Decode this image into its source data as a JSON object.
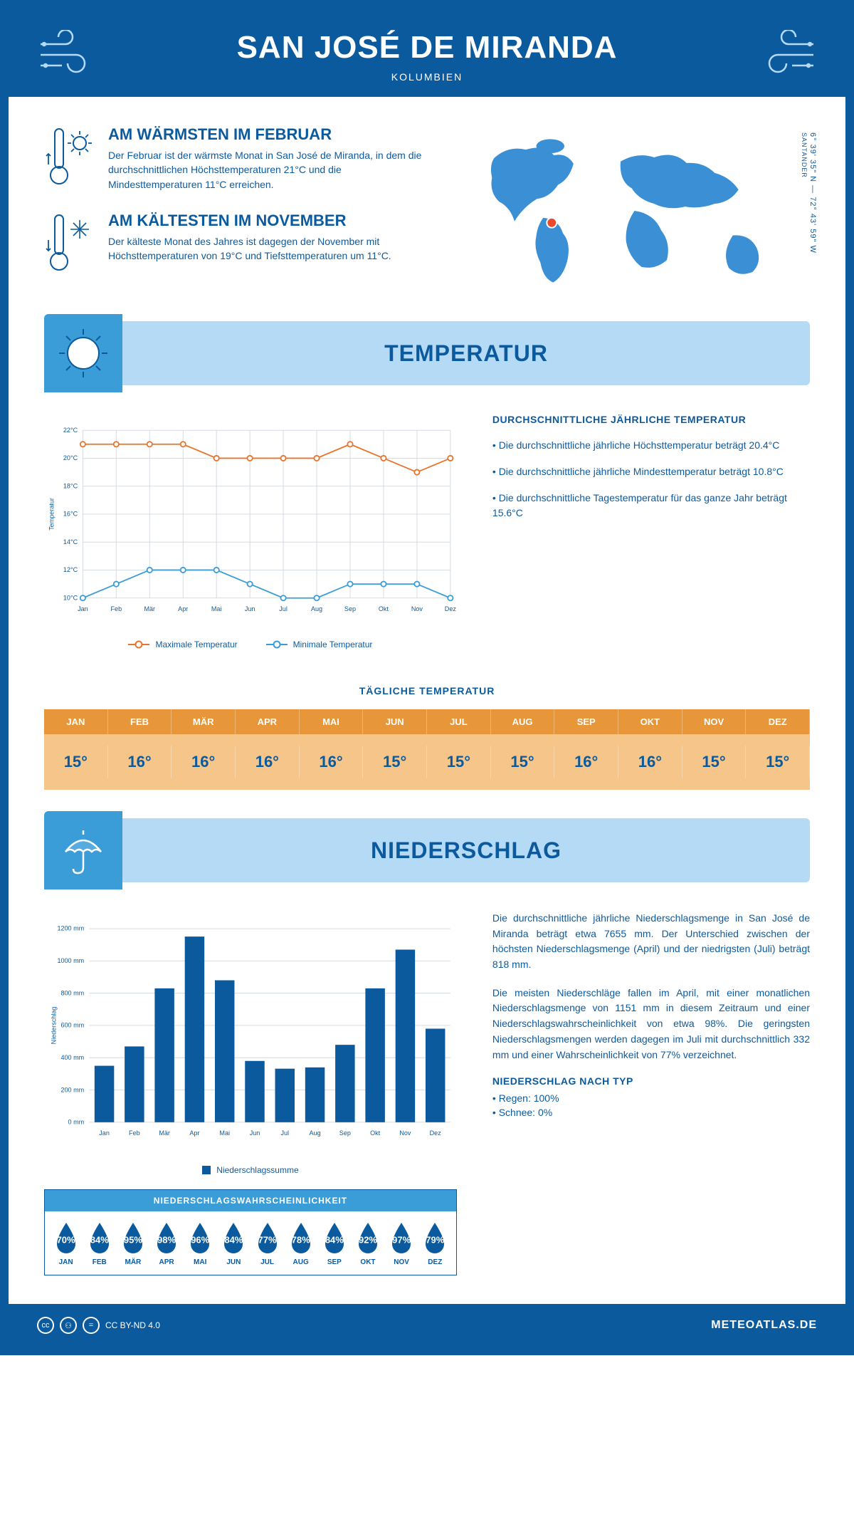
{
  "header": {
    "title": "SAN JOSÉ DE MIRANDA",
    "subtitle": "KOLUMBIEN"
  },
  "coords": {
    "line1": "6° 39' 35\" N — 72° 43' 59\" W",
    "line2": "SANTANDER"
  },
  "facts": {
    "warm": {
      "title": "AM WÄRMSTEN IM FEBRUAR",
      "text": "Der Februar ist der wärmste Monat in San José de Miranda, in dem die durchschnittlichen Höchsttemperaturen 21°C und die Mindesttemperaturen 11°C erreichen."
    },
    "cold": {
      "title": "AM KÄLTESTEN IM NOVEMBER",
      "text": "Der kälteste Monat des Jahres ist dagegen der November mit Höchsttemperaturen von 19°C und Tiefsttemperaturen um 11°C."
    }
  },
  "sections": {
    "temperature": "TEMPERATUR",
    "precipitation": "NIEDERSCHLAG"
  },
  "tempChart": {
    "type": "line",
    "months": [
      "Jan",
      "Feb",
      "Mär",
      "Apr",
      "Mai",
      "Jun",
      "Jul",
      "Aug",
      "Sep",
      "Okt",
      "Nov",
      "Dez"
    ],
    "max": [
      21,
      21,
      21,
      21,
      20,
      20,
      20,
      20,
      21,
      20,
      19,
      20
    ],
    "min": [
      10,
      11,
      12,
      12,
      12,
      11,
      10,
      10,
      11,
      11,
      11,
      10
    ],
    "colors": {
      "max": "#e8742c",
      "min": "#3b9dd8",
      "grid": "#d0d8e0",
      "axis": "#0c5a9e"
    },
    "ylim": [
      10,
      22
    ],
    "ytick_step": 2,
    "ylabel": "Temperatur",
    "legend": {
      "max": "Maximale Temperatur",
      "min": "Minimale Temperatur"
    }
  },
  "tempInfo": {
    "title": "DURCHSCHNITTLICHE JÄHRLICHE TEMPERATUR",
    "items": [
      "• Die durchschnittliche jährliche Höchsttemperatur beträgt 20.4°C",
      "• Die durchschnittliche jährliche Mindesttemperatur beträgt 10.8°C",
      "• Die durchschnittliche Tagestemperatur für das ganze Jahr beträgt 15.6°C"
    ]
  },
  "daily": {
    "title": "TÄGLICHE TEMPERATUR",
    "months": [
      "JAN",
      "FEB",
      "MÄR",
      "APR",
      "MAI",
      "JUN",
      "JUL",
      "AUG",
      "SEP",
      "OKT",
      "NOV",
      "DEZ"
    ],
    "values": [
      "15°",
      "16°",
      "16°",
      "16°",
      "16°",
      "15°",
      "15°",
      "15°",
      "16°",
      "16°",
      "15°",
      "15°"
    ],
    "colors": {
      "head_bg": "#e8963a",
      "val_bg": "#f5c589",
      "text": "#0c5a9e"
    }
  },
  "precipChart": {
    "type": "bar",
    "months": [
      "Jan",
      "Feb",
      "Mär",
      "Apr",
      "Mai",
      "Jun",
      "Jul",
      "Aug",
      "Sep",
      "Okt",
      "Nov",
      "Dez"
    ],
    "values": [
      350,
      470,
      830,
      1151,
      880,
      380,
      332,
      340,
      480,
      830,
      1070,
      580
    ],
    "bar_color": "#0c5a9e",
    "ylim": [
      0,
      1200
    ],
    "ytick_step": 200,
    "ylabel": "Niederschlag",
    "legend": "Niederschlagssumme"
  },
  "precipText": {
    "p1": "Die durchschnittliche jährliche Niederschlagsmenge in San José de Miranda beträgt etwa 7655 mm. Der Unterschied zwischen der höchsten Niederschlagsmenge (April) und der niedrigsten (Juli) beträgt 818 mm.",
    "p2": "Die meisten Niederschläge fallen im April, mit einer monatlichen Niederschlagsmenge von 1151 mm in diesem Zeitraum und einer Niederschlagswahrscheinlichkeit von etwa 98%. Die geringsten Niederschlagsmengen werden dagegen im Juli mit durchschnittlich 332 mm und einer Wahrscheinlichkeit von 77% verzeichnet.",
    "typeTitle": "NIEDERSCHLAG NACH TYP",
    "types": [
      "• Regen: 100%",
      "• Schnee: 0%"
    ]
  },
  "prob": {
    "title": "NIEDERSCHLAGSWAHRSCHEINLICHKEIT",
    "months": [
      "JAN",
      "FEB",
      "MÄR",
      "APR",
      "MAI",
      "JUN",
      "JUL",
      "AUG",
      "SEP",
      "OKT",
      "NOV",
      "DEZ"
    ],
    "values": [
      "70%",
      "84%",
      "95%",
      "98%",
      "96%",
      "84%",
      "77%",
      "78%",
      "84%",
      "92%",
      "97%",
      "79%"
    ],
    "drop_color": "#0c5a9e"
  },
  "footer": {
    "license": "CC BY-ND 4.0",
    "site": "METEOATLAS.DE"
  },
  "colors": {
    "primary": "#0c5a9e",
    "light_blue": "#b5daf5",
    "mid_blue": "#3b9dd8",
    "map_blue": "#3b8fd4",
    "marker": "#e84b2c"
  }
}
